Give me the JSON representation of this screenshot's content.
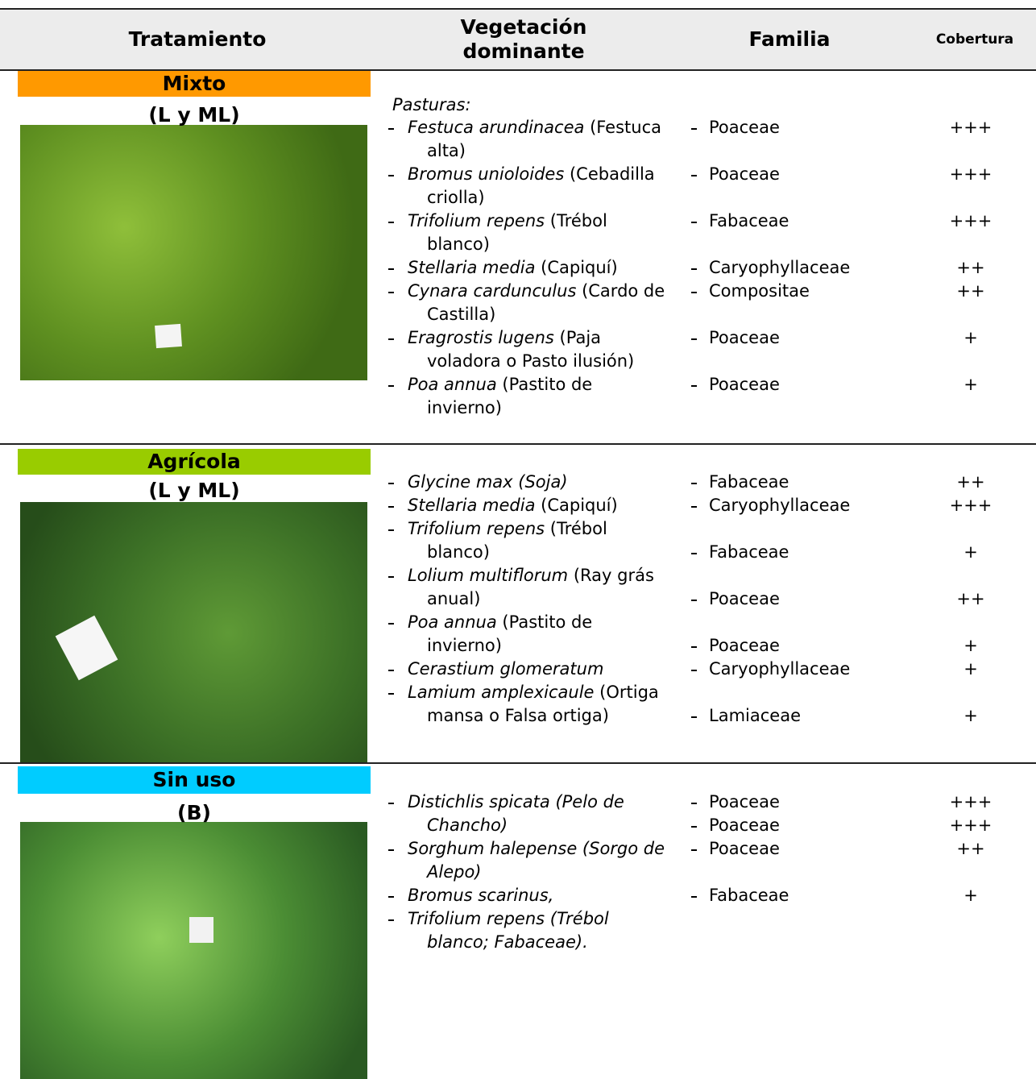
{
  "header": {
    "columns": [
      "Tratamiento",
      "Vegetación dominante",
      "Familia",
      "Cobertura"
    ]
  },
  "sections": [
    {
      "label": "Mixto",
      "code": "(L y ML)",
      "color": "#ff9900",
      "intro": "Pasturas:",
      "species": [
        {
          "species": "Festuca arundinacea",
          "common": "(Festuca alta)"
        },
        {
          "species": "Bromus unioloides",
          "common": "(Cebadilla criolla)"
        },
        {
          "species": "Trifolium repens",
          "common": "(Trébol blanco)"
        },
        {
          "species": "Stellaria media",
          "common": "(Capiquí)"
        },
        {
          "species": "Cynara cardunculus",
          "common": "(Cardo de Castilla)"
        },
        {
          "species": "Eragrostis lugens",
          "common": "(Paja voladora o Pasto ilusión)"
        },
        {
          "species": "Poa annua",
          "common": "(Pastito de invierno)"
        }
      ],
      "families": [
        {
          "family": "Poaceae",
          "cover": "+++"
        },
        {
          "family": "Poaceae",
          "cover": "+++"
        },
        {
          "family": "Fabaceae",
          "cover": "+++"
        },
        {
          "family": "Caryophyllaceae",
          "cover": "++"
        },
        {
          "family": "Compositae",
          "cover": "++"
        },
        {
          "family": "Poaceae",
          "cover": "+"
        },
        {
          "family": "Poaceae",
          "cover": "+"
        }
      ]
    },
    {
      "label": "Agrícola",
      "code": "(L y ML)",
      "color": "#99cc00",
      "species": [
        {
          "species": "Glycine max (Soja)"
        },
        {
          "species": "Stellaria media",
          "common": "(Capiquí)"
        },
        {
          "species": "Trifolium repens",
          "common": "(Trébol blanco)"
        },
        {
          "species": "Lolium multiflorum",
          "common": "(Ray grás anual)"
        },
        {
          "species": "Poa annua",
          "common": "(Pastito de invierno)"
        },
        {
          "species": "Cerastium glomeratum"
        },
        {
          "species": "Lamium amplexicaule",
          "common": "(Ortiga mansa o Falsa ortiga)"
        }
      ],
      "families": [
        {
          "family": "Fabaceae",
          "cover": "++"
        },
        {
          "family": "Caryophyllaceae",
          "cover": "+++"
        },
        {
          "family": "Fabaceae",
          "cover": "+"
        },
        {
          "family": "Poaceae",
          "cover": "++"
        },
        {
          "family": "Poaceae",
          "cover": "+"
        },
        {
          "family": "Caryophyllaceae",
          "cover": "+"
        },
        {
          "family": "Lamiaceae",
          "cover": "+"
        }
      ]
    },
    {
      "label": "Sin uso",
      "code": "(B)",
      "color": "#00ccff",
      "species": [
        {
          "species": "Distichlis spicata (Pelo de Chancho)"
        },
        {
          "species": "Sorghum halepense (Sorgo de Alepo)"
        },
        {
          "species": "Bromus scarinus,"
        },
        {
          "species": "Trifolium repens (Trébol blanco; Fabaceae)."
        }
      ],
      "families": [
        {
          "family": "Poaceae",
          "cover": "+++"
        },
        {
          "family": "Poaceae",
          "cover": "+++"
        },
        {
          "family": "Poaceae",
          "cover": "++"
        },
        {
          "family": "Fabaceae",
          "cover": "+"
        }
      ]
    }
  ]
}
